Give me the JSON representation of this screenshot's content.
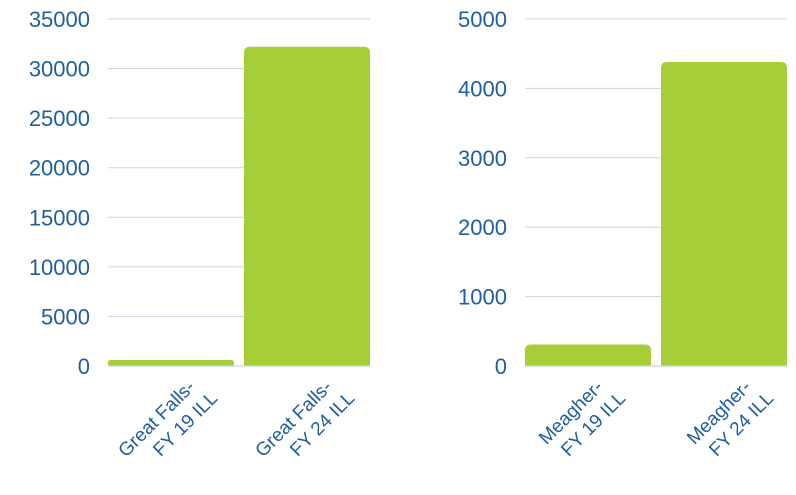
{
  "chart_data": [
    {
      "type": "bar",
      "title": "",
      "xlabel": "",
      "ylabel": "",
      "categories": [
        "Great Falls- FY 19 ILL",
        "Great Falls- FY 24 ILL"
      ],
      "category_lines": [
        [
          "Great Falls-",
          "FY 19 ILL"
        ],
        [
          "Great Falls-",
          "FY 24 ILL"
        ]
      ],
      "values": [
        600,
        32200
      ],
      "ylim": [
        0,
        35000
      ],
      "yticks": [
        0,
        5000,
        10000,
        15000,
        20000,
        25000,
        30000,
        35000
      ],
      "ytick_labels": [
        "0",
        "5000",
        "10000",
        "15000",
        "20000",
        "25000",
        "30000",
        "35000"
      ],
      "grid": true,
      "bar_color": "#a6ce39"
    },
    {
      "type": "bar",
      "title": "",
      "xlabel": "",
      "ylabel": "",
      "categories": [
        "Meagher- FY 19 ILL",
        "Meagher- FY 24 ILL"
      ],
      "category_lines": [
        [
          "Meagher-",
          "FY 19 ILL"
        ],
        [
          "Meagher-",
          "FY 24 ILL"
        ]
      ],
      "values": [
        310,
        4380
      ],
      "ylim": [
        0,
        5000
      ],
      "yticks": [
        0,
        1000,
        2000,
        3000,
        4000,
        5000
      ],
      "ytick_labels": [
        "0",
        "1000",
        "2000",
        "3000",
        "4000",
        "5000"
      ],
      "grid": true,
      "bar_color": "#a6ce39"
    }
  ],
  "colors": {
    "text": "#1f5fa0",
    "grid": "#c9d7e6",
    "bar": "#a6ce39"
  }
}
